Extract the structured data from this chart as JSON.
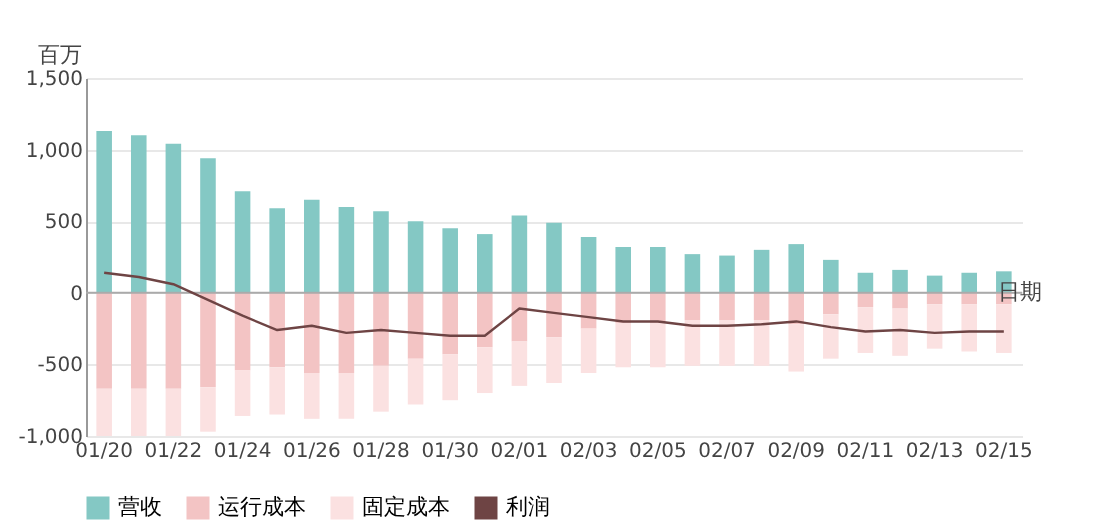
{
  "chart_data": {
    "type": "bar",
    "stacked": true,
    "ylabel": "百万",
    "xlabel": "日期",
    "categories": [
      "01/20",
      null,
      "01/22",
      null,
      "01/24",
      null,
      "01/26",
      null,
      "01/28",
      null,
      "01/30",
      null,
      "02/01",
      null,
      "02/03",
      null,
      "02/05",
      null,
      "02/07",
      null,
      "02/09",
      null,
      "02/11",
      null,
      "02/13",
      null,
      "02/15"
    ],
    "series": [
      {
        "name": "营收",
        "color": "#84c8c4",
        "values": [
          1130,
          1100,
          1040,
          940,
          710,
          590,
          650,
          600,
          570,
          500,
          450,
          410,
          540,
          490,
          390,
          320,
          320,
          270,
          260,
          300,
          340,
          230,
          140,
          160,
          120,
          140,
          150
        ]
      },
      {
        "name": "运行成本",
        "color": "#f3c4c4",
        "values": [
          -670,
          -670,
          -670,
          -660,
          -540,
          -520,
          -560,
          -560,
          -510,
          -460,
          -430,
          -380,
          -340,
          -310,
          -250,
          -210,
          -210,
          -190,
          -190,
          -190,
          -220,
          -150,
          -100,
          -110,
          -80,
          -80,
          -80
        ]
      },
      {
        "name": "固定成本",
        "color": "#fbe1e1",
        "values": [
          -330,
          -330,
          -330,
          -310,
          -320,
          -330,
          -320,
          -320,
          -320,
          -320,
          -320,
          -320,
          -310,
          -320,
          -310,
          -310,
          -310,
          -320,
          -320,
          -320,
          -330,
          -310,
          -320,
          -330,
          -310,
          -330,
          -340
        ]
      },
      {
        "name": "利润",
        "type": "line",
        "color": "#6e4444",
        "values": [
          140,
          110,
          60,
          -50,
          -160,
          -260,
          -230,
          -280,
          -260,
          -280,
          -300,
          -300,
          -110,
          -140,
          -170,
          -200,
          -200,
          -230,
          -230,
          -220,
          -200,
          -240,
          -270,
          -260,
          -280,
          -270,
          -270
        ]
      }
    ],
    "ylim": [
      -1000,
      1500
    ],
    "yticks": [
      {
        "value": -1000,
        "label": "-1,000"
      },
      -500,
      0,
      500,
      {
        "value": 1000,
        "label": "1,000"
      },
      {
        "value": 1500,
        "label": "1,500"
      }
    ],
    "grid": "y",
    "legend": "bottom"
  }
}
